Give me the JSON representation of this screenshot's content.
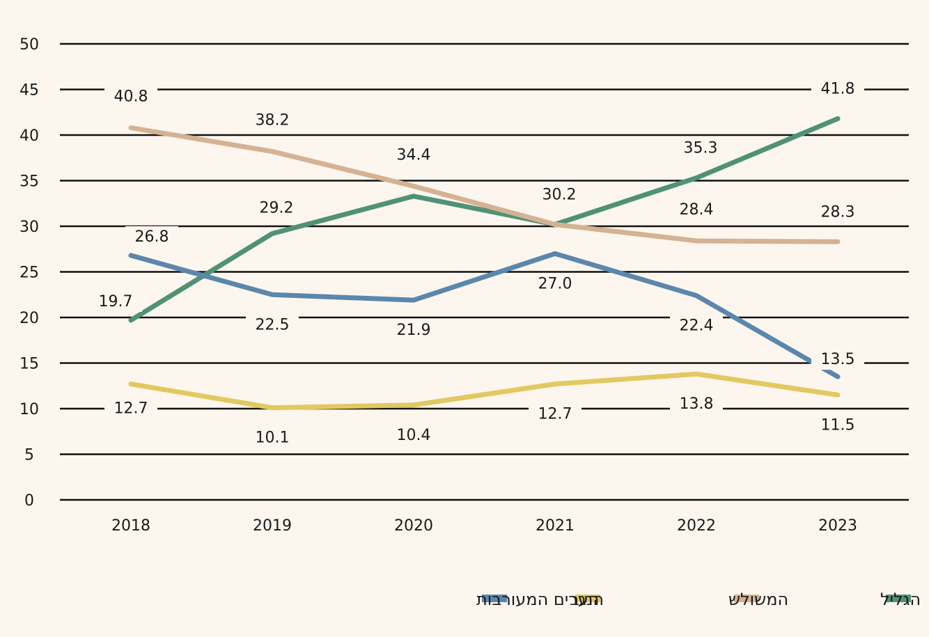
{
  "chart_data": {
    "type": "line",
    "title": "",
    "xlabel": "",
    "ylabel": "",
    "x": [
      "2018",
      "2019",
      "2020",
      "2021",
      "2022",
      "2023"
    ],
    "ylim": [
      0,
      50
    ],
    "yticks": [
      0,
      5,
      10,
      15,
      20,
      25,
      30,
      35,
      40,
      45,
      50
    ],
    "grid": true,
    "legend_position": "bottom",
    "series": [
      {
        "name": "הגליל",
        "color": "#4f9276",
        "values": [
          19.7,
          29.2,
          33.3,
          30.2,
          35.3,
          41.8
        ],
        "labels": [
          "19.7",
          "29.2",
          "",
          "30.2",
          "35.3",
          "41.8"
        ]
      },
      {
        "name": "המשולש",
        "color": "#d4b293",
        "values": [
          40.8,
          38.2,
          34.4,
          30.2,
          28.4,
          28.3
        ],
        "labels": [
          "40.8",
          "38.2",
          "34.4",
          "",
          "28.4",
          "28.3"
        ]
      },
      {
        "name": "הנגב",
        "color": "#e2c960",
        "values": [
          12.7,
          10.1,
          10.4,
          12.7,
          13.8,
          11.5
        ],
        "labels": [
          "12.7",
          "10.1",
          "10.4",
          "12.7",
          "13.8",
          "11.5"
        ]
      },
      {
        "name": "הערים המעורבות",
        "color": "#5b87ad",
        "values": [
          26.8,
          22.5,
          21.9,
          27.0,
          22.4,
          13.5
        ],
        "labels": [
          "26.8",
          "22.5",
          "21.9",
          "27.0",
          "22.4",
          "13.5"
        ]
      }
    ]
  }
}
